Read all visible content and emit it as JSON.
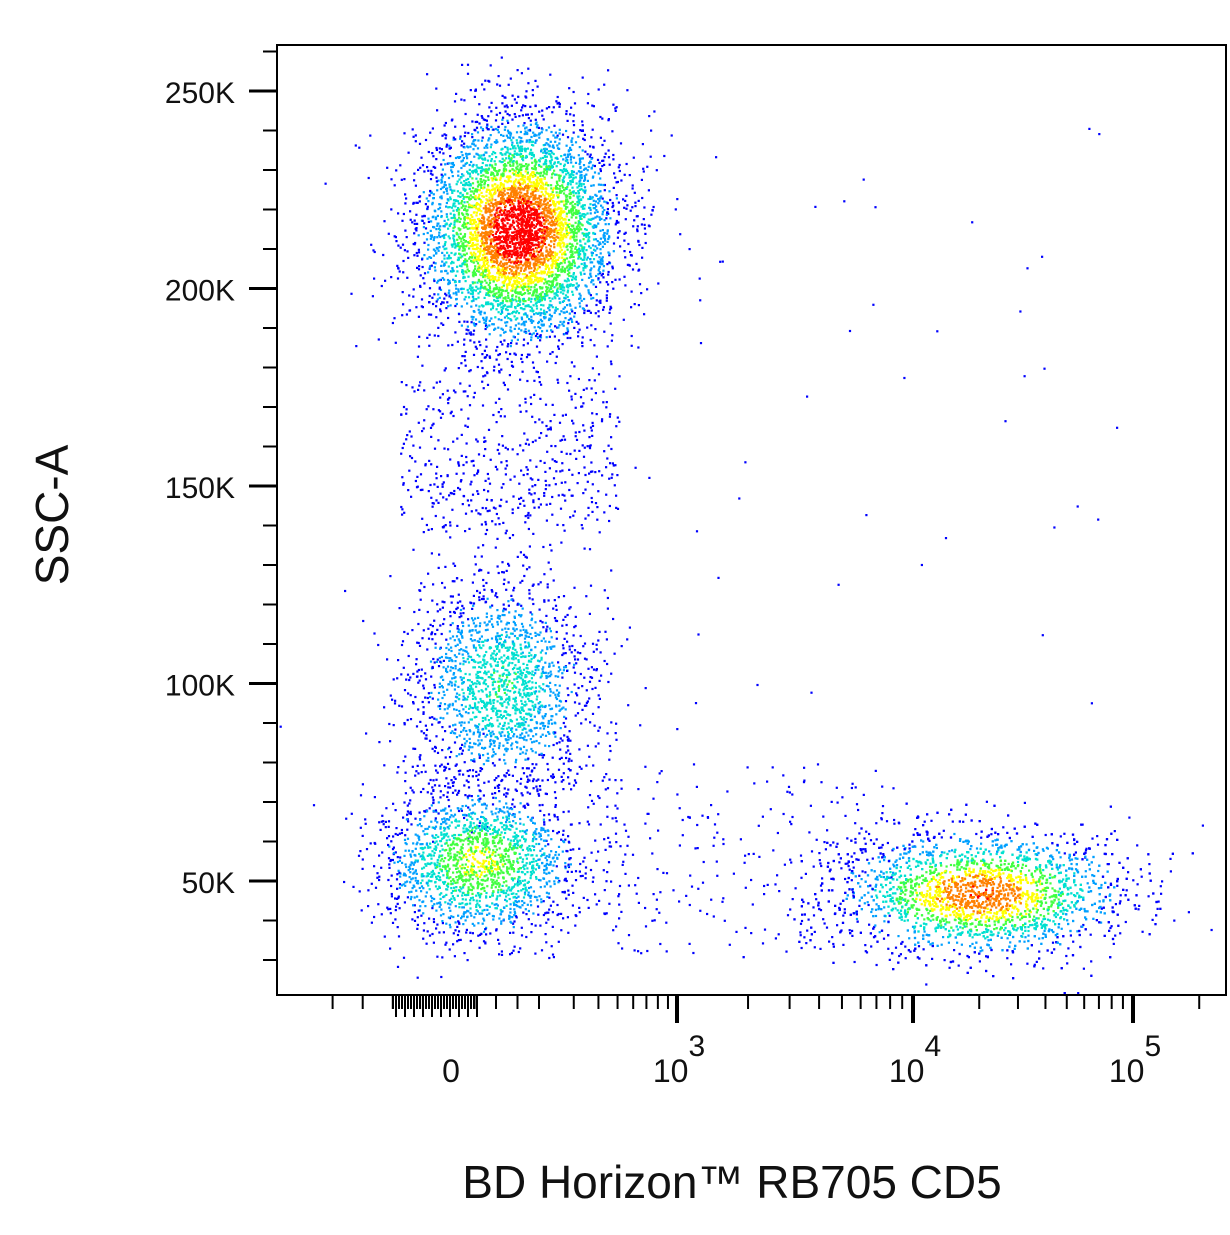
{
  "chart_data": {
    "type": "scatter",
    "subtype": "flow-cytometry density dot plot (pseudocolor)",
    "title": "",
    "xlabel": "BD Horizon™ RB705 CD5",
    "ylabel": "SSC-A",
    "x_scale": "biexponential (linear near 0, log above)",
    "y_scale": "linear",
    "ylim": [
      20000,
      262000
    ],
    "xlim": [
      -300,
      170000
    ],
    "x_ticks": [
      {
        "label": "0",
        "value": 0
      },
      {
        "label": "10",
        "exp": "3",
        "value": 1000
      },
      {
        "label": "10",
        "exp": "4",
        "value": 10000
      },
      {
        "label": "10",
        "exp": "5",
        "value": 100000
      }
    ],
    "y_ticks": [
      {
        "label": "50K",
        "value": 50000
      },
      {
        "label": "100K",
        "value": 100000
      },
      {
        "label": "150K",
        "value": 150000
      },
      {
        "label": "200K",
        "value": 200000
      },
      {
        "label": "250K",
        "value": 250000
      }
    ],
    "grid": false,
    "legend": "none",
    "density_colormap": [
      "#0000ff",
      "#00a0ff",
      "#00e0d0",
      "#40ff40",
      "#ffff00",
      "#ff8000",
      "#ff0000"
    ],
    "populations": [
      {
        "id": "granulocytes",
        "x_center": 150,
        "y_center": 215000,
        "peak_density": "red",
        "cd5": "negative"
      },
      {
        "id": "monocytes-like",
        "x_center": 110,
        "y_center": 100000,
        "peak_density": "cyan",
        "cd5": "negative"
      },
      {
        "id": "cd5-negative-lymphocytes",
        "x_center": 60,
        "y_center": 55000,
        "peak_density": "green",
        "cd5": "negative"
      },
      {
        "id": "cd5-positive-lymphocytes",
        "x_center": 20000,
        "y_center": 47000,
        "peak_density": "yellow-orange",
        "cd5": "positive"
      }
    ]
  }
}
